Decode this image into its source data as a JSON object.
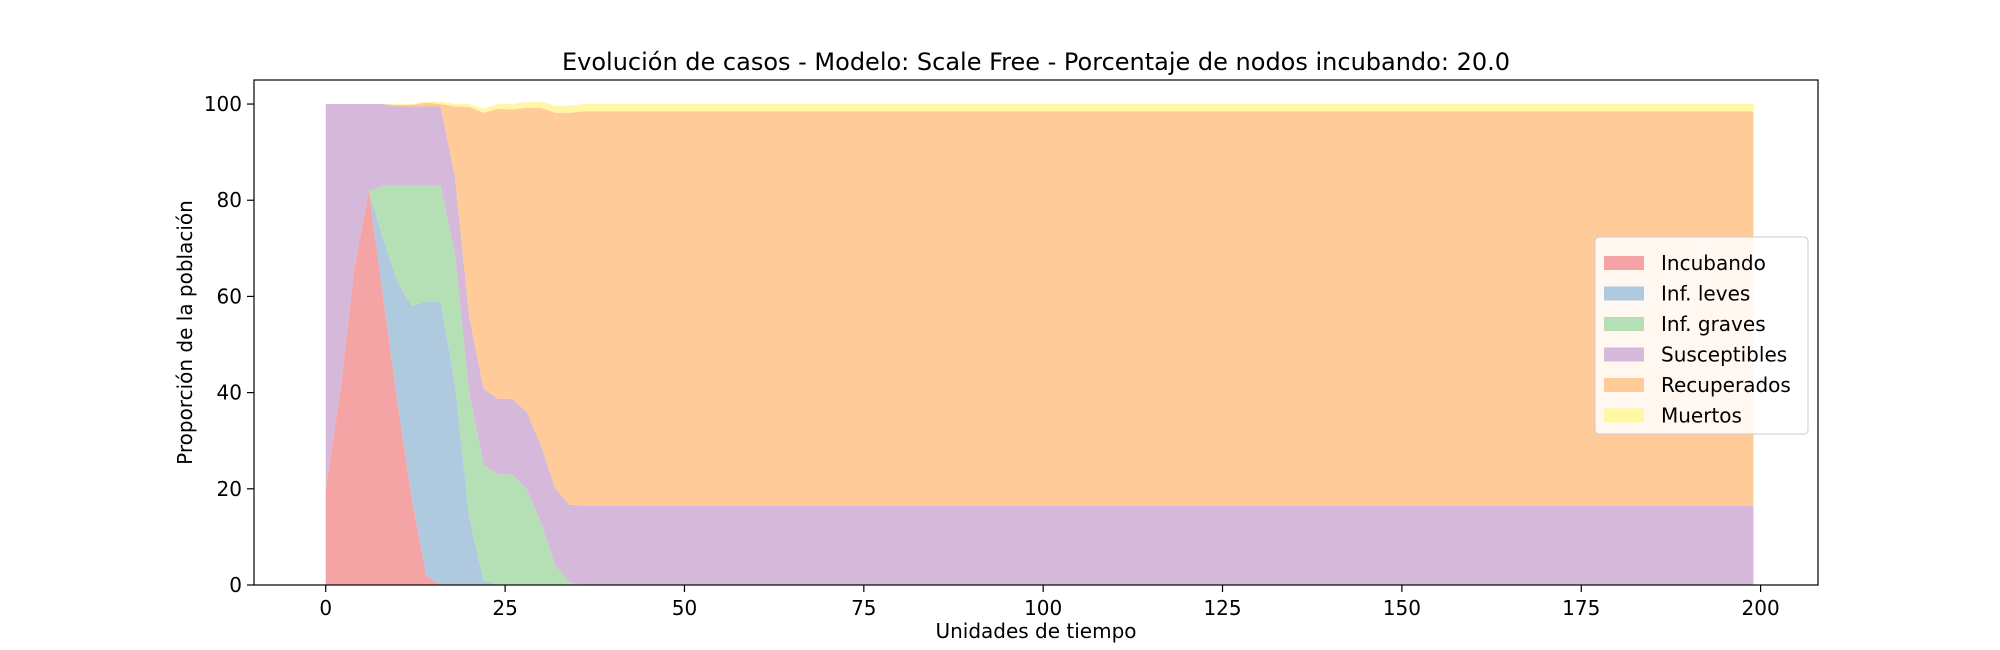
{
  "chart_data": {
    "type": "area",
    "title": "Evolución de casos - Modelo: Scale Free - Porcentaje de nodos incubando: 20.0",
    "xlabel": "Unidades de tiempo",
    "ylabel": "Proporción de la población",
    "xlim": [
      -10,
      208
    ],
    "ylim": [
      0,
      105
    ],
    "xticks": [
      0,
      25,
      50,
      75,
      100,
      125,
      150,
      175,
      200
    ],
    "yticks": [
      0,
      20,
      40,
      60,
      80,
      100
    ],
    "grid": false,
    "legend_position": "center-right",
    "x": [
      0,
      2,
      4,
      6,
      8,
      10,
      12,
      14,
      16,
      18,
      20,
      22,
      24,
      26,
      28,
      30,
      32,
      34,
      36,
      40,
      199
    ],
    "series": [
      {
        "name": "Incubando",
        "color": "#f4a4a4",
        "values": [
          20,
          40,
          66,
          82,
          60,
          38,
          18,
          2,
          0,
          0,
          0,
          0,
          0,
          0,
          0,
          0,
          0,
          0,
          0,
          0,
          0
        ]
      },
      {
        "name": "Inf. leves",
        "color": "#afc9df",
        "values": [
          0,
          0,
          0,
          0,
          12,
          25,
          40,
          57,
          59,
          42,
          14,
          1,
          0,
          0,
          0,
          0,
          0,
          0,
          0,
          0,
          0
        ]
      },
      {
        "name": "Inf. graves",
        "color": "#b5dfb5",
        "values": [
          0,
          0,
          0,
          0,
          11,
          20,
          25,
          24,
          24,
          27,
          26,
          24,
          23,
          23,
          20,
          13,
          4,
          0.5,
          0,
          0,
          0
        ]
      },
      {
        "name": "Susceptibles",
        "color": "#d5b8da",
        "values": [
          80,
          60,
          34,
          18,
          17,
          16.5,
          16.5,
          16.5,
          16.5,
          16,
          15.8,
          15.8,
          15.7,
          15.7,
          16,
          16,
          16,
          16.2,
          16.5,
          16.5,
          16.5
        ]
      },
      {
        "name": "Recuperados",
        "color": "#ffcb99",
        "values": [
          0,
          0,
          0,
          0,
          0,
          0.3,
          0.3,
          0.8,
          0.5,
          14.5,
          43.6,
          57.4,
          60.3,
          60.2,
          63.2,
          70.2,
          78.2,
          81.5,
          82,
          82,
          82
        ]
      },
      {
        "name": "Muertos",
        "color": "#fff7a3",
        "values": [
          0,
          0,
          0,
          0,
          0,
          0.2,
          0.2,
          0.2,
          0.5,
          0.5,
          0.6,
          0.8,
          1,
          1.1,
          1.2,
          1.3,
          1.4,
          1.5,
          1.5,
          1.5,
          1.5
        ]
      }
    ]
  }
}
